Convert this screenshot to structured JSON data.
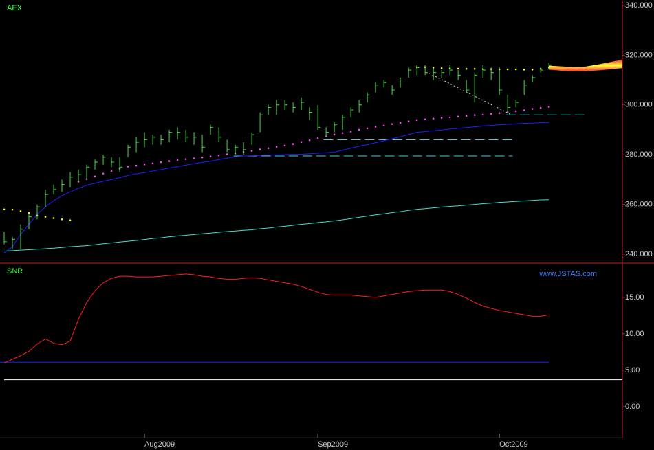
{
  "chart_data": [
    {
      "type": "ohlc",
      "title": "AEX",
      "title_color": "#40ff40",
      "xlim": [
        -0.5,
        74.9
      ],
      "ylim": [
        236.4,
        342.2
      ],
      "yticks": [
        {
          "value": 340,
          "label": "340.000"
        },
        {
          "value": 320,
          "label": "320.000"
        },
        {
          "value": 300,
          "label": "300.000"
        },
        {
          "value": 280,
          "label": "280.000"
        },
        {
          "value": 260,
          "label": "260.000"
        },
        {
          "value": 240,
          "label": "240.000"
        }
      ],
      "bar_color": "#40e040",
      "high": [
        249,
        247,
        252,
        256,
        260,
        266,
        268,
        270,
        273,
        274,
        276,
        278,
        280,
        279,
        279,
        284,
        287,
        289,
        288,
        288,
        290,
        291,
        290,
        289,
        288,
        292,
        291,
        286,
        284,
        285,
        289,
        297,
        300,
        302,
        302,
        301,
        303,
        299,
        300,
        291,
        293,
        296,
        299,
        302,
        305,
        309,
        310,
        308,
        311,
        315,
        316,
        316,
        315,
        314,
        316,
        314,
        310,
        313,
        316,
        315,
        315,
        304,
        302,
        310,
        312,
        315,
        317
      ],
      "low": [
        244,
        242,
        242,
        250,
        254,
        259,
        264,
        265,
        267,
        269,
        270,
        274,
        276,
        275,
        273,
        279,
        281,
        283,
        284,
        284,
        285,
        286,
        285,
        284,
        281,
        288,
        285,
        281,
        280,
        280,
        284,
        289,
        296,
        296,
        298,
        297,
        298,
        294,
        290,
        287,
        289,
        290,
        295,
        297,
        301,
        305,
        307,
        304,
        307,
        311,
        312,
        312,
        310,
        311,
        312,
        310,
        305,
        301,
        311,
        310,
        304,
        297,
        299,
        304,
        309,
        313,
        314
      ],
      "close": [
        245,
        246,
        250,
        255,
        259,
        264,
        266,
        268,
        271,
        272,
        275,
        277,
        279,
        277,
        275,
        283,
        285,
        286,
        287,
        286,
        289,
        289,
        287,
        287,
        283,
        291,
        287,
        282,
        283,
        282,
        288,
        296,
        299,
        300,
        300,
        299,
        301,
        297,
        291,
        289,
        292,
        295,
        298,
        300,
        304,
        308,
        309,
        306,
        310,
        314,
        315,
        313,
        313,
        313,
        314,
        312,
        306,
        312,
        314,
        313,
        306,
        299,
        301,
        308,
        311,
        314,
        316
      ],
      "series": [
        {
          "style": "line",
          "color": "#2020ff",
          "values": [
            240.5,
            243,
            248,
            252,
            256,
            259,
            261.5,
            263.5,
            265,
            266.5,
            267.7,
            268.5,
            269.3,
            270,
            270.8,
            271.7,
            272.3,
            272.8,
            273.4,
            274,
            274.6,
            275.2,
            275.8,
            276.4,
            276.9,
            277.4,
            278,
            278.6,
            279.2,
            279.5,
            279.6,
            279.7,
            279.8,
            279.9,
            280,
            280.1,
            280.2,
            280.4,
            280.6,
            280.8,
            281,
            281.8,
            282.6,
            283.4,
            284.1,
            284.8,
            285.6,
            286.4,
            287.2,
            288.1,
            289,
            289.3,
            289.6,
            289.9,
            290.3,
            290.6,
            290.9,
            291.2,
            291.5,
            291.8,
            292,
            292.2,
            292.4,
            292.6,
            292.7,
            292.9,
            293
          ]
        },
        {
          "style": "line",
          "color": "#40e0d0",
          "values": [
            241.2,
            241.4,
            241.6,
            241.8,
            242,
            242.2,
            242.4,
            242.7,
            243,
            243.2,
            243.4,
            243.8,
            244.2,
            244.5,
            244.9,
            245.2,
            245.5,
            245.9,
            246.3,
            246.6,
            247,
            247.3,
            247.6,
            247.9,
            248.2,
            248.5,
            248.8,
            249.1,
            249.3,
            249.6,
            249.8,
            250.2,
            250.5,
            250.9,
            251.2,
            251.6,
            252,
            252.3,
            252.7,
            253,
            253.4,
            253.8,
            254.3,
            254.8,
            255.3,
            255.8,
            256.2,
            256.7,
            257.1,
            257.6,
            258,
            258.3,
            258.6,
            258.9,
            259.2,
            259.4,
            259.7,
            260,
            260.3,
            260.5,
            260.8,
            261,
            261.2,
            261.4,
            261.6,
            261.8,
            261.9
          ]
        },
        {
          "style": "dots",
          "color": "#ff40ff",
          "values": [
            null,
            null,
            null,
            null,
            null,
            null,
            null,
            null,
            null,
            269.1,
            270.2,
            271.3,
            272.4,
            273.4,
            274.3,
            275.2,
            275.6,
            276.1,
            276.5,
            277,
            277.4,
            277.8,
            278.2,
            278.5,
            278.9,
            279.3,
            279.7,
            280.2,
            280.6,
            281.1,
            281.5,
            282.1,
            282.6,
            283.2,
            283.7,
            284.3,
            285.1,
            285.8,
            286.6,
            287.3,
            288.1,
            288.7,
            289.3,
            290,
            290.6,
            291.2,
            291.7,
            292.3,
            292.8,
            293.4,
            293.9,
            294.2,
            294.5,
            294.8,
            295,
            295.3,
            295.6,
            295.9,
            296.1,
            296.4,
            296.7,
            297.1,
            297.5,
            297.9,
            298.4,
            298.8,
            299.2
          ]
        },
        {
          "style": "dots",
          "color": "#ffff00",
          "values": [
            258,
            257.9,
            257.3,
            256.6,
            255.5,
            255,
            254.5,
            254,
            253.6,
            null,
            null,
            null,
            null,
            null,
            null,
            null,
            null,
            null,
            null,
            null,
            null,
            null,
            null,
            null,
            null,
            null,
            null,
            null,
            null,
            null,
            null,
            null,
            null,
            null,
            null,
            null,
            null,
            null,
            null,
            null,
            null,
            null,
            null,
            null,
            null,
            null,
            null,
            null,
            null,
            null,
            315.2,
            315.2,
            315,
            314.8,
            314.7,
            314.6,
            314.5,
            314.5,
            314.4,
            314.4,
            314.3,
            314.3,
            314.3,
            314.2,
            314.2,
            314.5,
            315
          ]
        }
      ],
      "levels": [
        {
          "value": 296,
          "from": 60.8,
          "to": 70.3
        },
        {
          "value": 286,
          "from": 38.7,
          "to": 61.6
        },
        {
          "value": 279.5,
          "from": 27.8,
          "to": 61.6
        }
      ],
      "level_color": "#40d0e0",
      "trendline": {
        "x": [
          51.5,
          61.5
        ],
        "y": [
          312.7,
          296
        ]
      },
      "forecast": {
        "x": [
          66,
          68,
          70,
          72,
          74.9
        ],
        "upper": [
          315.8,
          315.4,
          315.2,
          316.3,
          318.2
        ],
        "lower": [
          314.2,
          313.6,
          313.5,
          313.9,
          314.8
        ]
      }
    },
    {
      "type": "line",
      "title": "SNR",
      "title_color": "#40ff40",
      "annotation": "www.JSTAS.com",
      "xlim": [
        -0.5,
        74.9
      ],
      "ylim": [
        -4.25,
        19.7
      ],
      "yticks": [
        {
          "value": 15,
          "label": "15.00"
        },
        {
          "value": 10,
          "label": "10.00"
        },
        {
          "value": 5,
          "label": "5.00"
        },
        {
          "value": 0,
          "label": "0.00"
        }
      ],
      "xticks": [
        {
          "value": 17,
          "label": "Aug2009"
        },
        {
          "value": 38,
          "label": "Sep2009"
        },
        {
          "value": 60,
          "label": "Oct2009"
        }
      ],
      "series": [
        {
          "style": "line",
          "color": "#ff2020",
          "values": [
            6,
            6.5,
            7,
            7.6,
            8.6,
            9.3,
            8.7,
            8.5,
            9,
            12,
            14.3,
            15.9,
            17,
            17.6,
            17.9,
            17.9,
            17.8,
            17.8,
            17.8,
            17.9,
            18,
            18.1,
            18.2,
            18.1,
            17.9,
            17.8,
            17.6,
            17.5,
            17.5,
            17.6,
            17.7,
            17.6,
            17.4,
            17.2,
            17,
            16.8,
            16.5,
            16.1,
            15.7,
            15.4,
            15.3,
            15.3,
            15.3,
            15.2,
            15.1,
            15,
            15.2,
            15.4,
            15.6,
            15.8,
            15.9,
            16,
            16,
            16,
            15.8,
            15.4,
            14.9,
            14.3,
            13.8,
            13.5,
            13.2,
            13,
            12.8,
            12.6,
            12.4,
            12.4,
            12.6
          ]
        }
      ],
      "hlines": [
        {
          "value": 6.1,
          "from": -0.5,
          "to": 66,
          "color": "#2020ff"
        },
        {
          "value": 3.7,
          "from": 0,
          "to": 74.9,
          "color": "#ffffff"
        }
      ]
    }
  ]
}
